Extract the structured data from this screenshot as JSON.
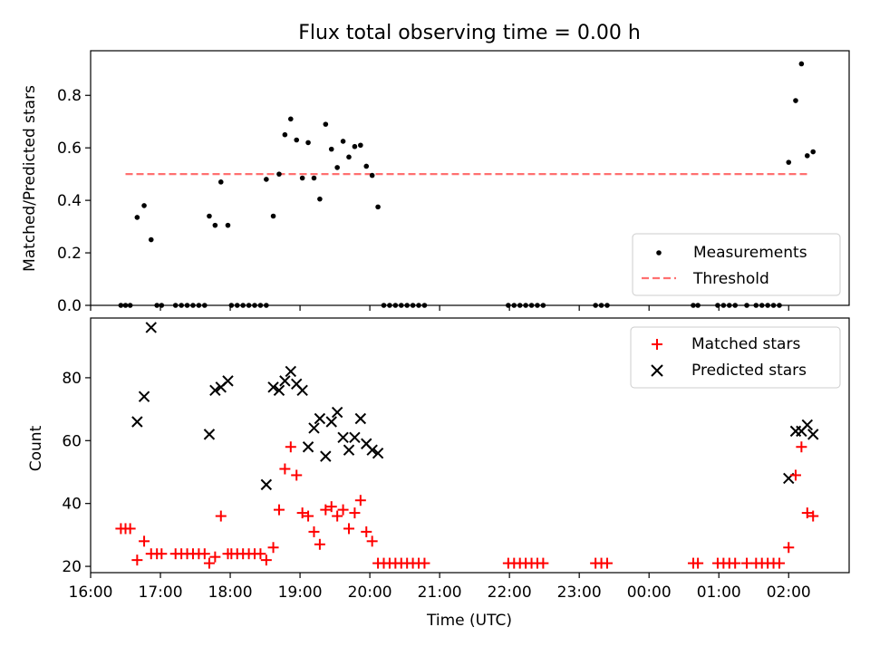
{
  "figure": {
    "title": "Flux total observing time = 0.00 h"
  },
  "chart_data": [
    {
      "type": "scatter",
      "panel": "top",
      "ylabel": "Matched/Predicted stars",
      "xlabel": "",
      "xlim": [
        "16:00",
        "02:52"
      ],
      "ylim": [
        0,
        0.97
      ],
      "yticks": [
        "0.0",
        "0.2",
        "0.4",
        "0.6",
        "0.8"
      ],
      "legend": {
        "placement": "lower-right"
      },
      "threshold": {
        "name": "Threshold",
        "value": 0.5,
        "x_start": "16:30",
        "x_end": "02:17",
        "color": "#ff7070"
      },
      "series": [
        {
          "name": "Measurements",
          "marker": "dot",
          "color": "#000000",
          "points": [
            [
              "16:26",
              0
            ],
            [
              "16:30",
              0
            ],
            [
              "16:34",
              0
            ],
            [
              "16:40",
              0.335
            ],
            [
              "16:46",
              0.38
            ],
            [
              "16:52",
              0.25
            ],
            [
              "16:57",
              0
            ],
            [
              "17:01",
              0
            ],
            [
              "17:13",
              0
            ],
            [
              "17:18",
              0
            ],
            [
              "17:23",
              0
            ],
            [
              "17:28",
              0
            ],
            [
              "17:33",
              0
            ],
            [
              "17:38",
              0
            ],
            [
              "17:42",
              0.34
            ],
            [
              "17:47",
              0.305
            ],
            [
              "17:52",
              0.47
            ],
            [
              "17:58",
              0.305
            ],
            [
              "18:01",
              0
            ],
            [
              "18:06",
              0
            ],
            [
              "18:11",
              0
            ],
            [
              "18:16",
              0
            ],
            [
              "18:21",
              0
            ],
            [
              "18:26",
              0
            ],
            [
              "18:31",
              0
            ],
            [
              "18:31",
              0.48
            ],
            [
              "18:37",
              0.34
            ],
            [
              "18:42",
              0.5
            ],
            [
              "18:47",
              0.65
            ],
            [
              "18:52",
              0.71
            ],
            [
              "18:57",
              0.63
            ],
            [
              "19:02",
              0.485
            ],
            [
              "19:07",
              0.62
            ],
            [
              "19:12",
              0.485
            ],
            [
              "19:17",
              0.405
            ],
            [
              "19:22",
              0.69
            ],
            [
              "19:27",
              0.595
            ],
            [
              "19:32",
              0.525
            ],
            [
              "19:37",
              0.625
            ],
            [
              "19:42",
              0.565
            ],
            [
              "19:47",
              0.605
            ],
            [
              "19:52",
              0.61
            ],
            [
              "19:57",
              0.53
            ],
            [
              "20:02",
              0.495
            ],
            [
              "20:07",
              0.375
            ],
            [
              "20:12",
              0
            ],
            [
              "20:17",
              0
            ],
            [
              "20:22",
              0
            ],
            [
              "20:27",
              0
            ],
            [
              "20:32",
              0
            ],
            [
              "20:37",
              0
            ],
            [
              "20:42",
              0
            ],
            [
              "20:47",
              0
            ],
            [
              "21:59",
              0
            ],
            [
              "22:04",
              0
            ],
            [
              "22:09",
              0
            ],
            [
              "22:14",
              0
            ],
            [
              "22:19",
              0
            ],
            [
              "22:24",
              0
            ],
            [
              "22:29",
              0
            ],
            [
              "23:14",
              0
            ],
            [
              "23:19",
              0
            ],
            [
              "23:24",
              0
            ],
            [
              "00:38",
              0
            ],
            [
              "00:42",
              0
            ],
            [
              "00:59",
              0
            ],
            [
              "01:04",
              0
            ],
            [
              "01:09",
              0
            ],
            [
              "01:14",
              0
            ],
            [
              "01:24",
              0
            ],
            [
              "01:32",
              0
            ],
            [
              "01:37",
              0
            ],
            [
              "01:42",
              0
            ],
            [
              "01:47",
              0
            ],
            [
              "01:52",
              0
            ],
            [
              "02:00",
              0.545
            ],
            [
              "02:06",
              0.78
            ],
            [
              "02:11",
              0.92
            ],
            [
              "02:16",
              0.57
            ],
            [
              "02:21",
              0.585
            ]
          ]
        }
      ]
    },
    {
      "type": "scatter",
      "panel": "bottom",
      "xlabel": "Time (UTC)",
      "ylabel": "Count",
      "xlim": [
        "16:00",
        "02:52"
      ],
      "ylim": [
        18,
        99
      ],
      "xticks": [
        "16:00",
        "17:00",
        "18:00",
        "19:00",
        "20:00",
        "21:00",
        "22:00",
        "23:00",
        "00:00",
        "01:00",
        "02:00"
      ],
      "yticks": [
        "20",
        "40",
        "60",
        "80"
      ],
      "legend": {
        "placement": "upper-right"
      },
      "series": [
        {
          "name": "Matched stars",
          "marker": "plus",
          "color": "#ff0000",
          "points": [
            [
              "16:26",
              32
            ],
            [
              "16:30",
              32
            ],
            [
              "16:34",
              32
            ],
            [
              "16:40",
              22
            ],
            [
              "16:46",
              28
            ],
            [
              "16:52",
              24
            ],
            [
              "16:57",
              24
            ],
            [
              "17:01",
              24
            ],
            [
              "17:13",
              24
            ],
            [
              "17:18",
              24
            ],
            [
              "17:23",
              24
            ],
            [
              "17:28",
              24
            ],
            [
              "17:33",
              24
            ],
            [
              "17:38",
              24
            ],
            [
              "17:42",
              21
            ],
            [
              "17:47",
              23
            ],
            [
              "17:52",
              36
            ],
            [
              "17:58",
              24
            ],
            [
              "18:01",
              24
            ],
            [
              "18:06",
              24
            ],
            [
              "18:11",
              24
            ],
            [
              "18:16",
              24
            ],
            [
              "18:21",
              24
            ],
            [
              "18:26",
              24
            ],
            [
              "18:31",
              22
            ],
            [
              "18:37",
              26
            ],
            [
              "18:42",
              38
            ],
            [
              "18:47",
              51
            ],
            [
              "18:52",
              58
            ],
            [
              "18:57",
              49
            ],
            [
              "19:02",
              37
            ],
            [
              "19:07",
              36
            ],
            [
              "19:12",
              31
            ],
            [
              "19:17",
              27
            ],
            [
              "19:22",
              38
            ],
            [
              "19:27",
              39
            ],
            [
              "19:32",
              36
            ],
            [
              "19:37",
              38
            ],
            [
              "19:42",
              32
            ],
            [
              "19:47",
              37
            ],
            [
              "19:52",
              41
            ],
            [
              "19:57",
              31
            ],
            [
              "20:02",
              28
            ],
            [
              "20:07",
              21
            ],
            [
              "20:12",
              21
            ],
            [
              "20:17",
              21
            ],
            [
              "20:22",
              21
            ],
            [
              "20:27",
              21
            ],
            [
              "20:32",
              21
            ],
            [
              "20:37",
              21
            ],
            [
              "20:42",
              21
            ],
            [
              "20:47",
              21
            ],
            [
              "21:59",
              21
            ],
            [
              "22:04",
              21
            ],
            [
              "22:09",
              21
            ],
            [
              "22:14",
              21
            ],
            [
              "22:19",
              21
            ],
            [
              "22:24",
              21
            ],
            [
              "22:29",
              21
            ],
            [
              "23:14",
              21
            ],
            [
              "23:19",
              21
            ],
            [
              "23:24",
              21
            ],
            [
              "00:38",
              21
            ],
            [
              "00:42",
              21
            ],
            [
              "00:59",
              21
            ],
            [
              "01:04",
              21
            ],
            [
              "01:09",
              21
            ],
            [
              "01:14",
              21
            ],
            [
              "01:24",
              21
            ],
            [
              "01:32",
              21
            ],
            [
              "01:37",
              21
            ],
            [
              "01:42",
              21
            ],
            [
              "01:47",
              21
            ],
            [
              "01:52",
              21
            ],
            [
              "02:00",
              26
            ],
            [
              "02:06",
              49
            ],
            [
              "02:11",
              58
            ],
            [
              "02:16",
              37
            ],
            [
              "02:21",
              36
            ]
          ]
        },
        {
          "name": "Predicted stars",
          "marker": "x",
          "color": "#000000",
          "points": [
            [
              "16:40",
              66
            ],
            [
              "16:46",
              74
            ],
            [
              "16:52",
              96
            ],
            [
              "17:42",
              62
            ],
            [
              "17:47",
              76
            ],
            [
              "17:52",
              77
            ],
            [
              "17:58",
              79
            ],
            [
              "18:31",
              46
            ],
            [
              "18:37",
              77
            ],
            [
              "18:42",
              76
            ],
            [
              "18:47",
              79
            ],
            [
              "18:52",
              82
            ],
            [
              "18:57",
              78
            ],
            [
              "19:02",
              76
            ],
            [
              "19:07",
              58
            ],
            [
              "19:12",
              64
            ],
            [
              "19:17",
              67
            ],
            [
              "19:22",
              55
            ],
            [
              "19:27",
              66
            ],
            [
              "19:32",
              69
            ],
            [
              "19:37",
              61
            ],
            [
              "19:42",
              57
            ],
            [
              "19:47",
              61
            ],
            [
              "19:52",
              67
            ],
            [
              "19:57",
              59
            ],
            [
              "20:02",
              57
            ],
            [
              "20:07",
              56
            ],
            [
              "02:00",
              48
            ],
            [
              "02:06",
              63
            ],
            [
              "02:11",
              63
            ],
            [
              "02:16",
              65
            ],
            [
              "02:21",
              62
            ]
          ]
        }
      ]
    }
  ]
}
